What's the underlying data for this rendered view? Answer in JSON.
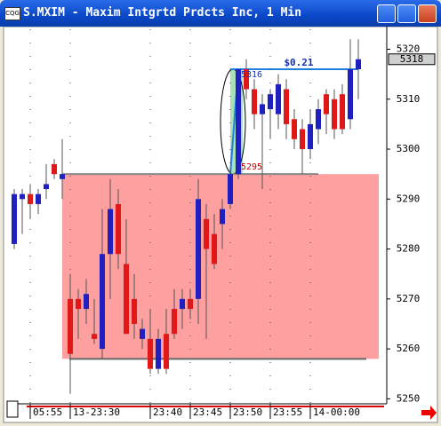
{
  "window": {
    "title": "S.MXIM - Maxim Intgrtd Prdcts Inc, 1 Min"
  },
  "chart_data": {
    "type": "candlestick",
    "ylim": [
      5249,
      5324
    ],
    "yticks": [
      5250,
      5260,
      5270,
      5280,
      5290,
      5300,
      5310,
      5320
    ],
    "up_color": "#2020c0",
    "down_color": "#e01818",
    "candles": [
      {
        "o": 5281,
        "h": 5292,
        "l": 5280,
        "c": 5291
      },
      {
        "o": 5290,
        "h": 5292,
        "l": 5283,
        "c": 5291
      },
      {
        "o": 5291,
        "h": 5293,
        "l": 5286,
        "c": 5289
      },
      {
        "o": 5289,
        "h": 5292,
        "l": 5287,
        "c": 5291
      },
      {
        "o": 5292,
        "h": 5297,
        "l": 5290,
        "c": 5293
      },
      {
        "o": 5297,
        "h": 5298,
        "l": 5294,
        "c": 5295
      },
      {
        "o": 5294,
        "h": 5302,
        "l": 5290,
        "c": 5295
      },
      {
        "o": 5270,
        "h": 5275,
        "l": 5251,
        "c": 5259
      },
      {
        "o": 5270,
        "h": 5272,
        "l": 5262,
        "c": 5268
      },
      {
        "o": 5268,
        "h": 5274,
        "l": 5265,
        "c": 5271
      },
      {
        "o": 5263,
        "h": 5270,
        "l": 5261,
        "c": 5262
      },
      {
        "o": 5260,
        "h": 5288,
        "l": 5258,
        "c": 5279
      },
      {
        "o": 5279,
        "h": 5294,
        "l": 5270,
        "c": 5288
      },
      {
        "o": 5289,
        "h": 5292,
        "l": 5276,
        "c": 5279
      },
      {
        "o": 5277,
        "h": 5286,
        "l": 5263,
        "c": 5263
      },
      {
        "o": 5270,
        "h": 5275,
        "l": 5262,
        "c": 5265
      },
      {
        "o": 5262,
        "h": 5266,
        "l": 5260,
        "c": 5264
      },
      {
        "o": 5262,
        "h": 5268,
        "l": 5255,
        "c": 5256
      },
      {
        "o": 5256,
        "h": 5264,
        "l": 5255,
        "c": 5262
      },
      {
        "o": 5263,
        "h": 5268,
        "l": 5255,
        "c": 5256
      },
      {
        "o": 5268,
        "h": 5272,
        "l": 5262,
        "c": 5263
      },
      {
        "o": 5268,
        "h": 5272,
        "l": 5264,
        "c": 5270
      },
      {
        "o": 5270,
        "h": 5272,
        "l": 5266,
        "c": 5268
      },
      {
        "o": 5270,
        "h": 5294,
        "l": 5265,
        "c": 5290
      },
      {
        "o": 5286,
        "h": 5289,
        "l": 5262,
        "c": 5280
      },
      {
        "o": 5283,
        "h": 5287,
        "l": 5276,
        "c": 5277
      },
      {
        "o": 5285,
        "h": 5290,
        "l": 5280,
        "c": 5288
      },
      {
        "o": 5289,
        "h": 5296,
        "l": 5288,
        "c": 5295
      },
      {
        "o": 5295,
        "h": 5316,
        "l": 5294,
        "c": 5316
      },
      {
        "o": 5316,
        "h": 5318,
        "l": 5310,
        "c": 5312
      },
      {
        "o": 5312,
        "h": 5314,
        "l": 5304,
        "c": 5307
      },
      {
        "o": 5307,
        "h": 5311,
        "l": 5292,
        "c": 5309
      },
      {
        "o": 5308,
        "h": 5312,
        "l": 5302,
        "c": 5311
      },
      {
        "o": 5307,
        "h": 5315,
        "l": 5304,
        "c": 5313
      },
      {
        "o": 5312,
        "h": 5314,
        "l": 5302,
        "c": 5305
      },
      {
        "o": 5306,
        "h": 5308,
        "l": 5300,
        "c": 5302
      },
      {
        "o": 5304,
        "h": 5306,
        "l": 5295,
        "c": 5300
      },
      {
        "o": 5300,
        "h": 5308,
        "l": 5298,
        "c": 5305
      },
      {
        "o": 5304,
        "h": 5310,
        "l": 5301,
        "c": 5308
      },
      {
        "o": 5311,
        "h": 5312,
        "l": 5303,
        "c": 5307
      },
      {
        "o": 5310,
        "h": 5312,
        "l": 5302,
        "c": 5304
      },
      {
        "o": 5311,
        "h": 5313,
        "l": 5303,
        "c": 5304
      },
      {
        "o": 5306,
        "h": 5322,
        "l": 5304,
        "c": 5316
      },
      {
        "o": 5316,
        "h": 5322,
        "l": 5310,
        "c": 5318
      }
    ],
    "xticks": [
      {
        "index": 2,
        "label": "05:55"
      },
      {
        "index": 7,
        "label": "13-23:30"
      },
      {
        "index": 17,
        "label": "23:40"
      },
      {
        "index": 22,
        "label": "23:45"
      },
      {
        "index": 27,
        "label": "23:50"
      },
      {
        "index": 32,
        "label": "23:55"
      },
      {
        "index": 37,
        "label": "14-00:00"
      }
    ],
    "last_price": 5318,
    "annotations": {
      "change_label": "$0.21",
      "high": 5316,
      "low": 5295,
      "zone_top": 5295,
      "zone_bottom": 5258
    }
  }
}
